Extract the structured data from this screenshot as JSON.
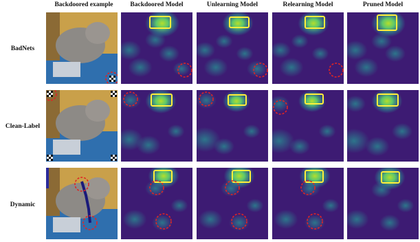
{
  "figure": {
    "columns": [
      "Backdoored example",
      "Backdoored Model",
      "Unlearning Model",
      "Relearning Model",
      "Pruned Model"
    ],
    "rows": [
      {
        "label": "BadNets",
        "example": {
          "trigger": "checkerboard-bottom-right"
        },
        "maps": [
          {
            "model": "Backdoored Model",
            "box": true,
            "circles": 1
          },
          {
            "model": "Unlearning Model",
            "box": true,
            "circles": 1
          },
          {
            "model": "Relearning Model",
            "box": true,
            "circles": 1
          },
          {
            "model": "Pruned Model",
            "box": true,
            "circles": 0
          }
        ]
      },
      {
        "label": "Clean-Label",
        "example": {
          "trigger": "checkerboard-four-corners"
        },
        "maps": [
          {
            "model": "Backdoored Model",
            "box": true,
            "circles": 1
          },
          {
            "model": "Unlearning Model",
            "box": true,
            "circles": 1
          },
          {
            "model": "Relearning Model",
            "box": true,
            "circles": 1
          },
          {
            "model": "Pruned Model",
            "box": true,
            "circles": 0
          }
        ]
      },
      {
        "label": "Dynamic",
        "example": {
          "trigger": "dynamic-pattern"
        },
        "maps": [
          {
            "model": "Backdoored Model",
            "box": true,
            "circles": 2
          },
          {
            "model": "Unlearning Model",
            "box": true,
            "circles": 2
          },
          {
            "model": "Relearning Model",
            "box": true,
            "circles": 2
          },
          {
            "model": "Pruned Model",
            "box": true,
            "circles": 0
          }
        ]
      }
    ],
    "colors": {
      "heat_bg": "#3d1b73",
      "heat_mid": "#2b7f8e",
      "heat_hi": "#5ed16a",
      "heat_peak": "#b5de2b",
      "box": "#ffef3a",
      "circle": "#e02424"
    }
  }
}
